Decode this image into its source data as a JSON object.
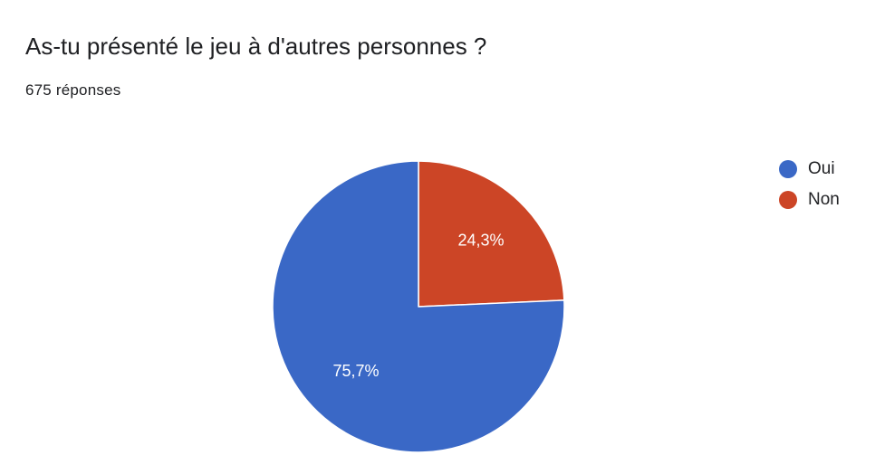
{
  "header": {
    "title": "As-tu présenté le jeu à d'autres personnes ?",
    "response_count": "675 réponses"
  },
  "colors": {
    "oui": "#3a68c6",
    "non": "#cc4526",
    "slice_border": "#ffffff",
    "label_text": "#ffffff"
  },
  "chart_data": {
    "type": "pie",
    "title": "As-tu présenté le jeu à d'autres personnes ?",
    "categories": [
      "Oui",
      "Non"
    ],
    "values": [
      75.7,
      24.3
    ],
    "labels": [
      "75,7%",
      "24,3%"
    ],
    "colors": [
      "#3a68c6",
      "#cc4526"
    ],
    "legend": {
      "position": "right",
      "entries": [
        "Oui",
        "Non"
      ]
    }
  }
}
